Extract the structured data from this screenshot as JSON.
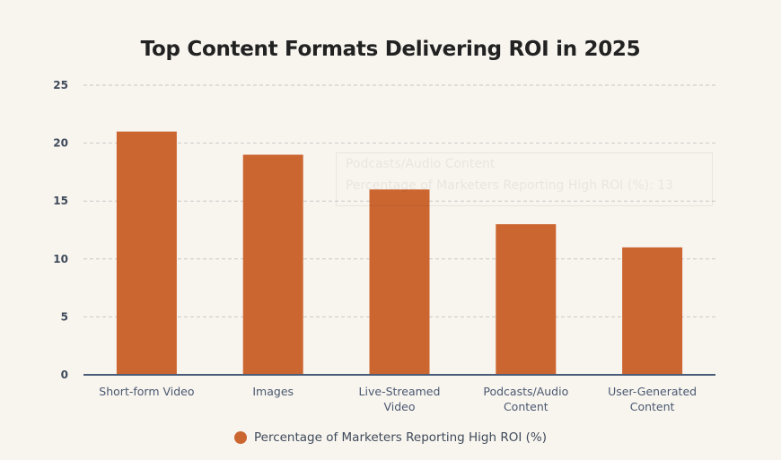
{
  "chart_data": {
    "type": "bar",
    "title": "Top Content Formats Delivering ROI in 2025",
    "categories": [
      [
        "Short-form Video"
      ],
      [
        "Images"
      ],
      [
        "Live-Streamed",
        "Video"
      ],
      [
        "Podcasts/Audio",
        "Content"
      ],
      [
        "User-Generated",
        "Content"
      ]
    ],
    "series": [
      {
        "name": "Percentage of Marketers Reporting High ROI (%)",
        "values": [
          21,
          19,
          16,
          13,
          11
        ],
        "color": "#cc6631"
      }
    ],
    "ylim": [
      0,
      25
    ],
    "yticks": [
      0,
      5,
      10,
      15,
      20,
      25
    ],
    "grid": true,
    "legend": "bottom",
    "tooltip": {
      "title": "Podcasts/Audio Content",
      "text": "Percentage of Marketers Reporting High ROI (%): 13"
    }
  }
}
